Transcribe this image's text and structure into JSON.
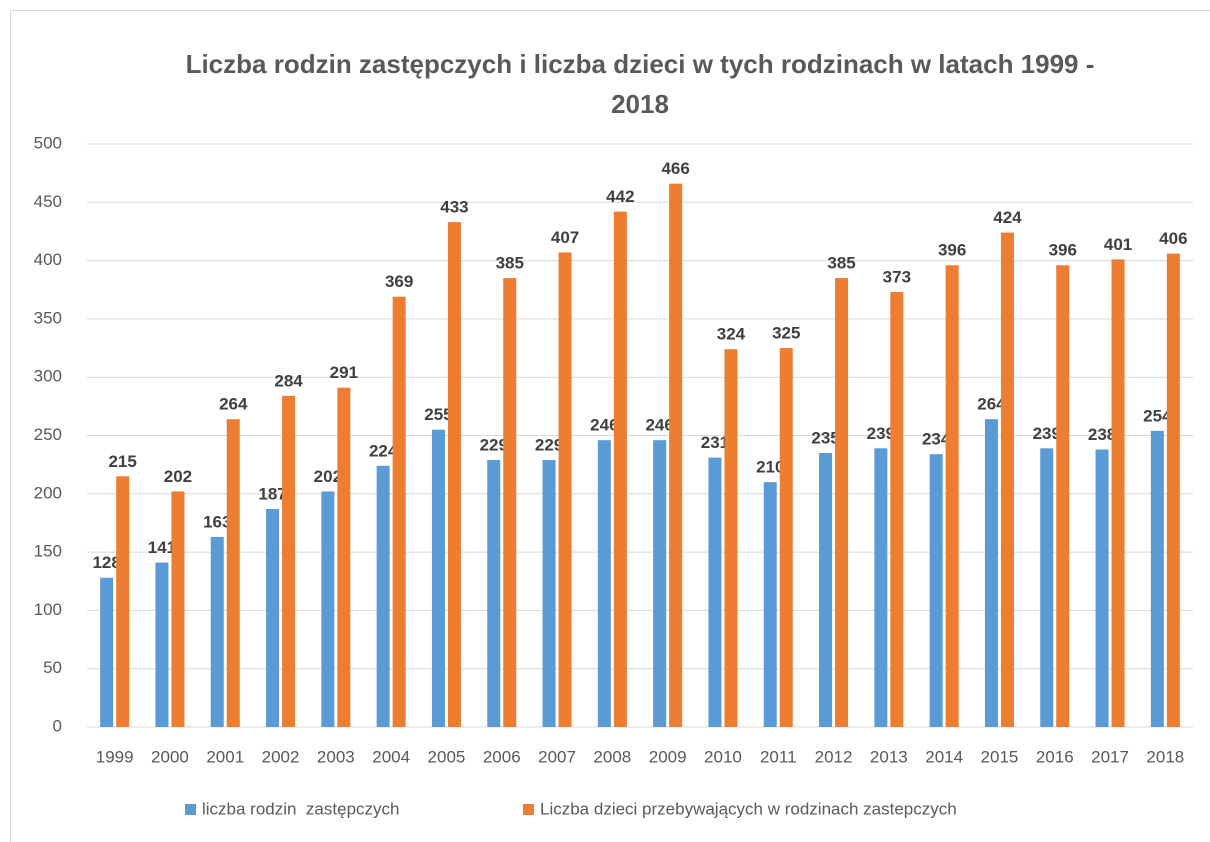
{
  "chart_data": {
    "type": "bar",
    "title": "Liczba rodzin zastępczych i liczba dzieci w tych rodzinach w latach 1999 - 2018",
    "categories": [
      "1999",
      "2000",
      "2001",
      "2002",
      "2003",
      "2004",
      "2005",
      "2006",
      "2007",
      "2008",
      "2009",
      "2010",
      "2011",
      "2012",
      "2013",
      "2014",
      "2015",
      "2016",
      "2017",
      "2018"
    ],
    "series": [
      {
        "name": "liczba rodzin  zastępczych",
        "color": "#5b9bd5",
        "values": [
          128,
          141,
          163,
          187,
          202,
          224,
          255,
          229,
          229,
          246,
          246,
          231,
          210,
          235,
          239,
          234,
          264,
          239,
          238,
          254
        ]
      },
      {
        "name": "Liczba dzieci przebywających w rodzinach zastepczych",
        "color": "#ed7d31",
        "values": [
          215,
          202,
          264,
          284,
          291,
          369,
          433,
          385,
          407,
          442,
          466,
          324,
          325,
          385,
          373,
          396,
          424,
          396,
          401,
          406
        ]
      }
    ],
    "ylim": [
      0,
      500
    ],
    "yticks": [
      0,
      50,
      100,
      150,
      200,
      250,
      300,
      350,
      400,
      450,
      500
    ],
    "grid": true,
    "legend": "bottom"
  }
}
